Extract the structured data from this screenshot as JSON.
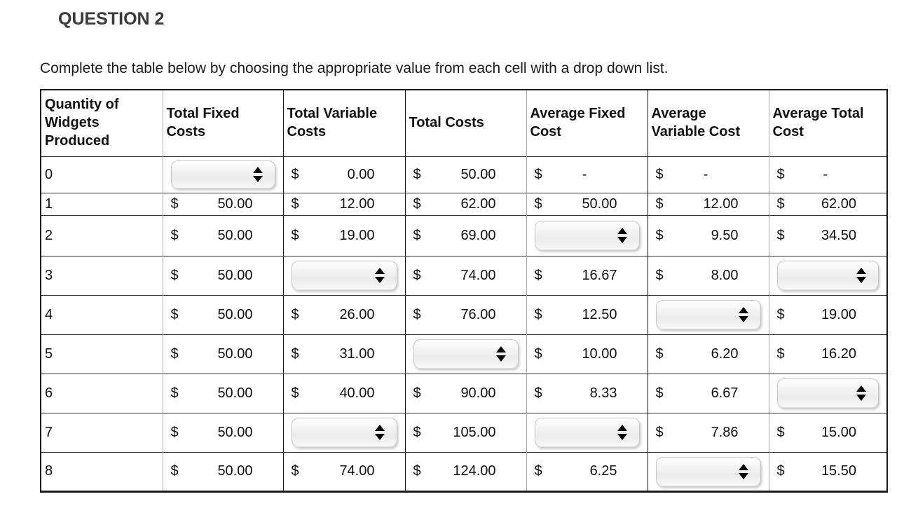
{
  "title": "QUESTION 2",
  "instruction": "Complete the table below by choosing the appropriate value from each cell with a drop down list.",
  "currency_symbol": "$",
  "table": {
    "headers": [
      "Quantity of Widgets Produced",
      "Total Fixed Costs",
      "Total Variable Costs",
      "Total Costs",
      "Average Fixed Cost",
      "Average Variable Cost",
      "Average Total Cost"
    ],
    "column_keys": [
      "quantity",
      "total-fixed-costs",
      "total-variable-costs",
      "total-costs",
      "average-fixed-cost",
      "average-variable-cost",
      "average-total-cost"
    ],
    "rows": [
      {
        "quantity": "0",
        "cells": [
          {
            "type": "dropdown"
          },
          {
            "type": "money",
            "value": "0.00"
          },
          {
            "type": "money",
            "value": "50.00"
          },
          {
            "type": "money",
            "value": "-"
          },
          {
            "type": "money",
            "value": "-"
          },
          {
            "type": "money",
            "value": "-"
          }
        ]
      },
      {
        "quantity": "1",
        "cells": [
          {
            "type": "money",
            "value": "50.00"
          },
          {
            "type": "money",
            "value": "12.00"
          },
          {
            "type": "money",
            "value": "62.00"
          },
          {
            "type": "money",
            "value": "50.00"
          },
          {
            "type": "money",
            "value": "12.00"
          },
          {
            "type": "money",
            "value": "62.00"
          }
        ]
      },
      {
        "quantity": "2",
        "cells": [
          {
            "type": "money",
            "value": "50.00"
          },
          {
            "type": "money",
            "value": "19.00"
          },
          {
            "type": "money",
            "value": "69.00"
          },
          {
            "type": "dropdown"
          },
          {
            "type": "money",
            "value": "9.50"
          },
          {
            "type": "money",
            "value": "34.50"
          }
        ]
      },
      {
        "quantity": "3",
        "cells": [
          {
            "type": "money",
            "value": "50.00"
          },
          {
            "type": "dropdown"
          },
          {
            "type": "money",
            "value": "74.00"
          },
          {
            "type": "money",
            "value": "16.67"
          },
          {
            "type": "money",
            "value": "8.00"
          },
          {
            "type": "dropdown"
          }
        ]
      },
      {
        "quantity": "4",
        "cells": [
          {
            "type": "money",
            "value": "50.00"
          },
          {
            "type": "money",
            "value": "26.00"
          },
          {
            "type": "money",
            "value": "76.00"
          },
          {
            "type": "money",
            "value": "12.50"
          },
          {
            "type": "dropdown"
          },
          {
            "type": "money",
            "value": "19.00"
          }
        ]
      },
      {
        "quantity": "5",
        "cells": [
          {
            "type": "money",
            "value": "50.00"
          },
          {
            "type": "money",
            "value": "31.00"
          },
          {
            "type": "dropdown"
          },
          {
            "type": "money",
            "value": "10.00"
          },
          {
            "type": "money",
            "value": "6.20"
          },
          {
            "type": "money",
            "value": "16.20"
          }
        ]
      },
      {
        "quantity": "6",
        "cells": [
          {
            "type": "money",
            "value": "50.00"
          },
          {
            "type": "money",
            "value": "40.00"
          },
          {
            "type": "money",
            "value": "90.00"
          },
          {
            "type": "money",
            "value": "8.33"
          },
          {
            "type": "money",
            "value": "6.67"
          },
          {
            "type": "dropdown"
          }
        ]
      },
      {
        "quantity": "7",
        "cells": [
          {
            "type": "money",
            "value": "50.00"
          },
          {
            "type": "dropdown"
          },
          {
            "type": "money",
            "value": "105.00"
          },
          {
            "type": "dropdown"
          },
          {
            "type": "money",
            "value": "7.86"
          },
          {
            "type": "money",
            "value": "15.00"
          }
        ]
      },
      {
        "quantity": "8",
        "cells": [
          {
            "type": "money",
            "value": "50.00"
          },
          {
            "type": "money",
            "value": "74.00"
          },
          {
            "type": "money",
            "value": "124.00"
          },
          {
            "type": "money",
            "value": "6.25"
          },
          {
            "type": "dropdown"
          },
          {
            "type": "money",
            "value": "15.50"
          }
        ]
      }
    ]
  }
}
